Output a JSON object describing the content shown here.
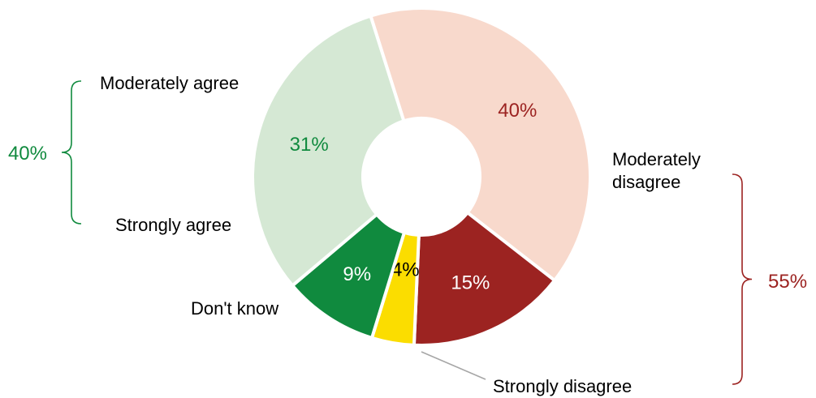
{
  "chart_data": {
    "type": "pie",
    "title": "",
    "series": [
      {
        "categories": [
          "Moderately disagree",
          "Strongly disagree",
          "Don't know",
          "Strongly agree",
          "Moderately agree"
        ],
        "values": [
          40,
          15,
          4,
          9,
          31
        ],
        "value_labels": [
          "40%",
          "15%",
          "4%",
          "9%",
          "31%"
        ],
        "category_labels": [
          [
            "Moderately",
            "disagree"
          ],
          [
            "Strongly disagree"
          ],
          [
            "Don't know"
          ],
          [
            "Strongly agree"
          ],
          [
            "Moderately agree"
          ]
        ],
        "colors": [
          "#f8d9cc",
          "#9c2321",
          "#fbdd00",
          "#108a3e",
          "#d5e8d4"
        ],
        "value_label_colors": [
          "#9c2321",
          "#ffffff",
          "#000000",
          "#ffffff",
          "#108a3e"
        ]
      }
    ],
    "groups": [
      {
        "label": "40%",
        "color": "#108a3e",
        "members": [
          "Moderately agree",
          "Strongly agree"
        ]
      },
      {
        "label": "55%",
        "color": "#9c2321",
        "members": [
          "Moderately disagree",
          "Strongly disagree"
        ]
      }
    ],
    "legend": "none"
  }
}
